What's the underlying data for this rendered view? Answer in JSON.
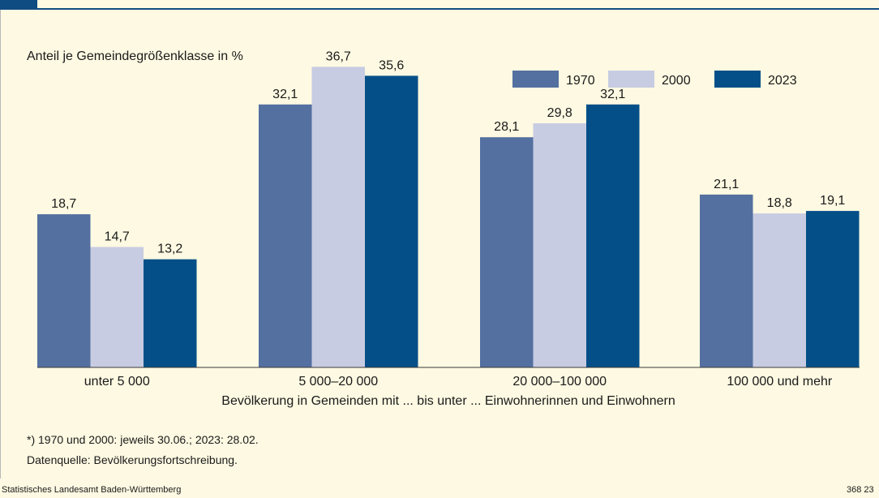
{
  "chart_data": {
    "type": "bar",
    "subtitle": "Anteil je Gemeindegrößenklasse in %",
    "xlabel": "Bevölkerung in Gemeinden mit ... bis unter ... Einwohnerinnen und Einwohnern",
    "categories": [
      "unter 5 000",
      "5 000–20 000",
      "20 000–100 000",
      "100 000 und mehr"
    ],
    "series": [
      {
        "name": "1970",
        "color": "#5470a0",
        "values": [
          18.7,
          32.1,
          28.1,
          21.1
        ],
        "labels": [
          "18,7",
          "32,1",
          "28,1",
          "21,1"
        ]
      },
      {
        "name": "2000",
        "color": "#c8cce2",
        "values": [
          14.7,
          36.7,
          29.8,
          18.8
        ],
        "labels": [
          "14,7",
          "36,7",
          "29,8",
          "18,8"
        ]
      },
      {
        "name": "2023",
        "color": "#044f88",
        "values": [
          13.2,
          35.6,
          32.1,
          19.1
        ],
        "labels": [
          "13,2",
          "35,6",
          "32,1",
          "19,1"
        ]
      }
    ],
    "ylim": [
      0,
      40
    ],
    "grid": false,
    "legend_position": "top-right"
  },
  "footnote": "*) 1970 und 2000: jeweils 30.06.; 2023: 28.02.",
  "source": "Datenquelle: Bevölkerungsfortschreibung.",
  "publisher": "Statistisches Landesamt Baden-Württemberg",
  "chart_number": "368 23"
}
